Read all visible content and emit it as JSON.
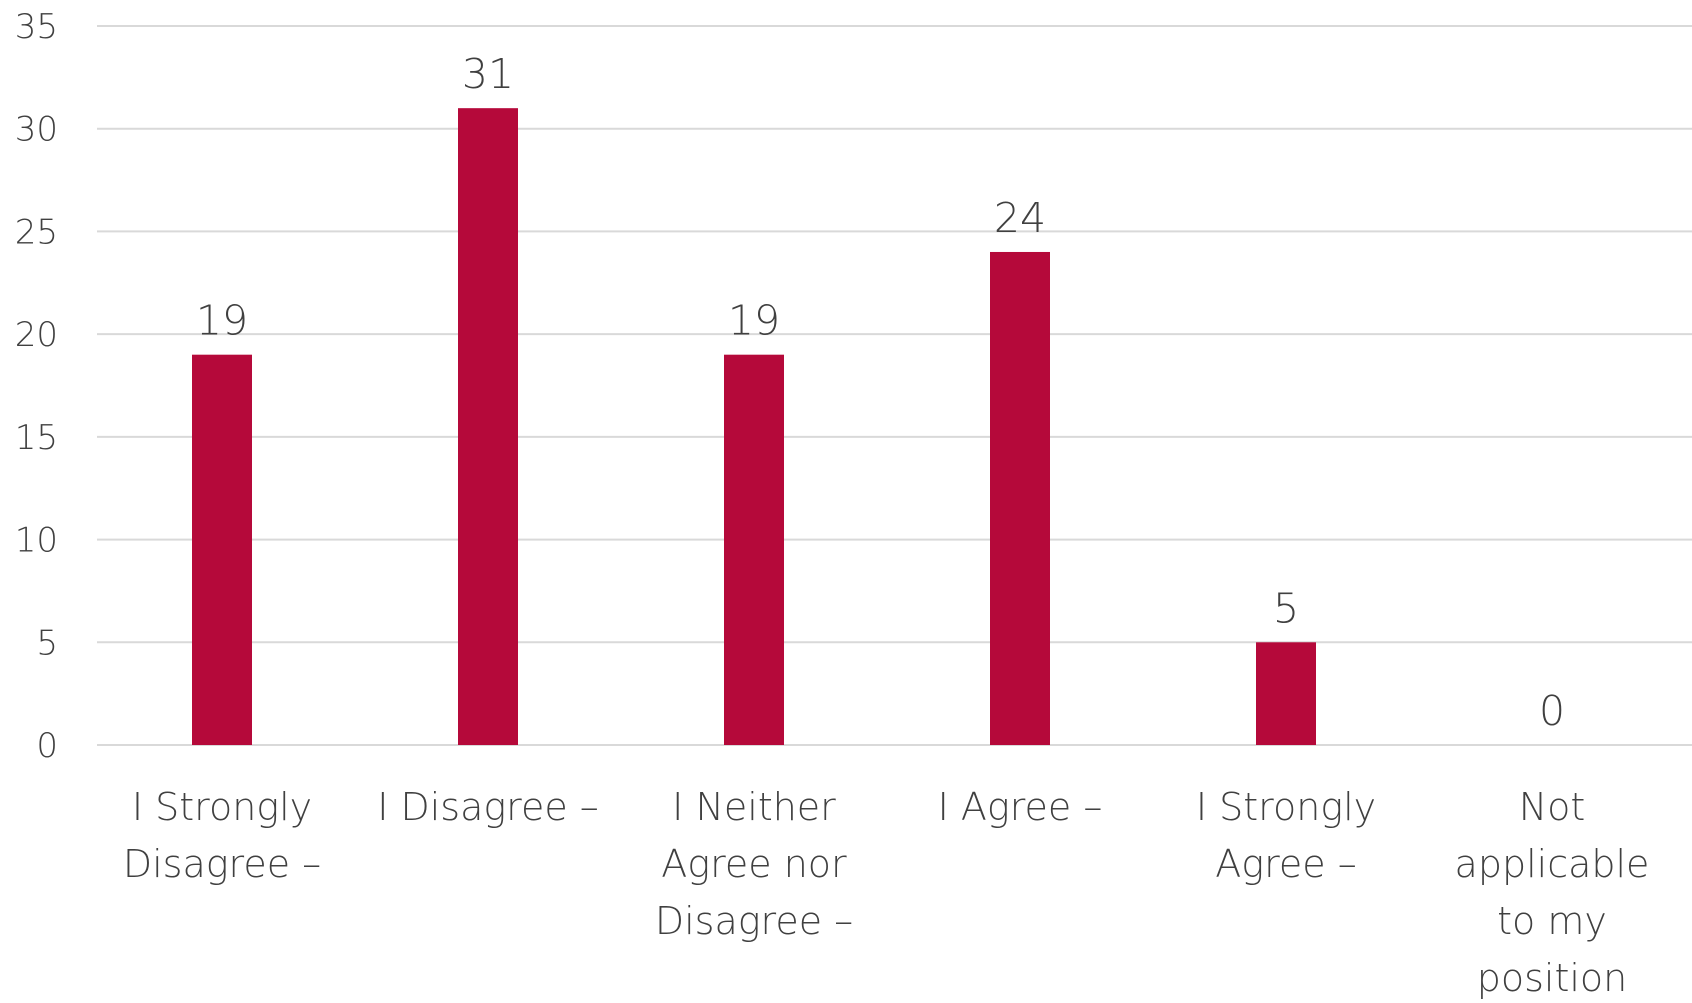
{
  "chart_data": {
    "type": "bar",
    "categories": [
      [
        "I Strongly",
        "Disagree –"
      ],
      [
        "I Disagree –"
      ],
      [
        "I Neither",
        "Agree nor",
        "Disagree –"
      ],
      [
        "I Agree –"
      ],
      [
        "I Strongly",
        "Agree –"
      ],
      [
        "Not",
        "applicable",
        "to my",
        "position"
      ]
    ],
    "values": [
      19,
      31,
      19,
      24,
      5,
      0
    ],
    "data_labels": [
      "19",
      "31",
      "19",
      "24",
      "5",
      "0"
    ],
    "y_ticks": [
      "0",
      "5",
      "10",
      "15",
      "20",
      "25",
      "30",
      "35"
    ],
    "ylim": [
      0,
      35
    ],
    "title": "",
    "xlabel": "",
    "ylabel": "",
    "grid": true,
    "legend": "none",
    "colors": {
      "bar": "#b5093a",
      "grid": "#d9d9d9",
      "text": "#404040"
    }
  }
}
